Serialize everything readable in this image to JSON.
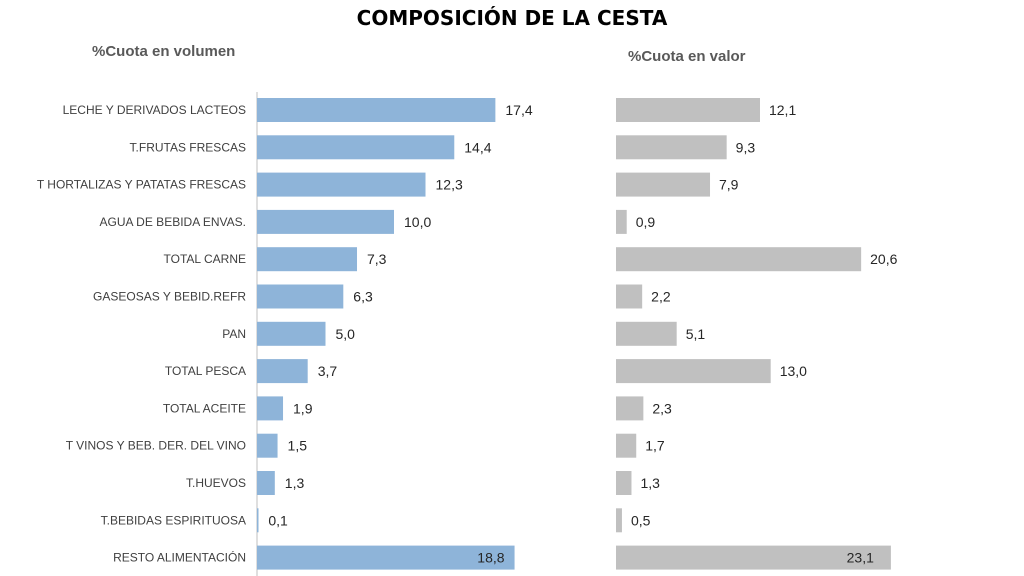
{
  "title": "COMPOSICIÓN DE LA CESTA",
  "chart_data": [
    {
      "type": "bar",
      "orientation": "horizontal",
      "title": "%Cuota en volumen",
      "color": "#8eb4d9",
      "categories": [
        "LECHE Y DERIVADOS LACTEOS",
        "T.FRUTAS FRESCAS",
        "T HORTALIZAS Y PATATAS FRESCAS",
        "AGUA DE BEBIDA ENVAS.",
        "TOTAL CARNE",
        "GASEOSAS Y BEBID.REFR",
        "PAN",
        "TOTAL PESCA",
        "TOTAL ACEITE",
        "T VINOS Y BEB. DER. DEL VINO",
        "T.HUEVOS",
        "T.BEBIDAS ESPIRITUOSA",
        "RESTO ALIMENTACIÓN"
      ],
      "values": [
        17.4,
        14.4,
        12.3,
        10.0,
        7.3,
        6.3,
        5.0,
        3.7,
        1.9,
        1.5,
        1.3,
        0.1,
        18.8
      ],
      "value_labels": [
        "17,4",
        "14,4",
        "12,3",
        "10,0",
        "7,3",
        "6,3",
        "5,0",
        "3,7",
        "1,9",
        "1,5",
        "1,3",
        "0,1",
        "18,8"
      ],
      "xlim": [
        0,
        24
      ]
    },
    {
      "type": "bar",
      "orientation": "horizontal",
      "title": "%Cuota en valor",
      "color": "#c0c0c0",
      "values": [
        12.1,
        9.3,
        7.9,
        0.9,
        20.6,
        2.2,
        5.1,
        13.0,
        2.3,
        1.7,
        1.3,
        0.5,
        23.1
      ],
      "value_labels": [
        "12,1",
        "9,3",
        "7,9",
        "0,9",
        "20,6",
        "2,2",
        "5,1",
        "13,0",
        "2,3",
        "1,7",
        "1,3",
        "0,5",
        "23,1"
      ],
      "xlim": [
        0,
        26
      ]
    }
  ]
}
